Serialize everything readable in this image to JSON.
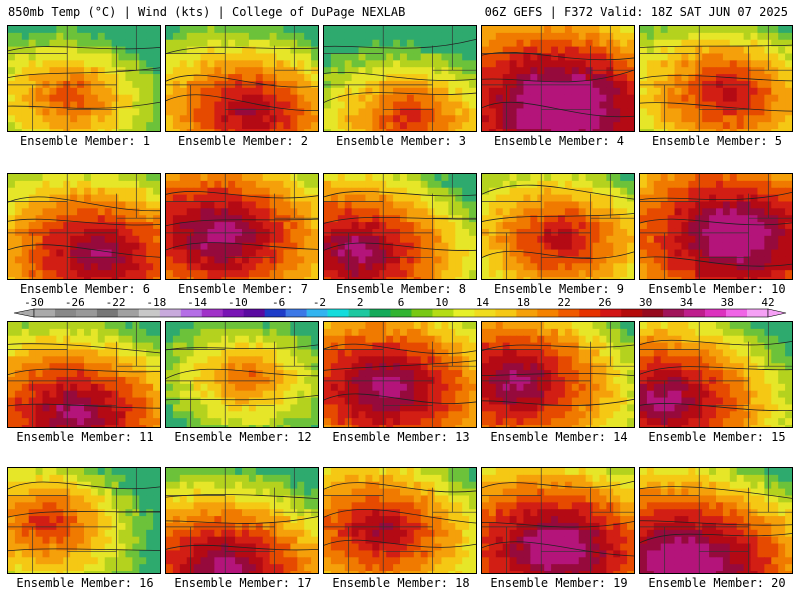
{
  "header": {
    "left": "850mb Temp (°C) | Wind (kts) | College of DuPage NEXLAB",
    "right": "06Z GEFS | F372 Valid: 18Z SAT JUN 07 2025"
  },
  "colorbar": {
    "labels": [
      "-30",
      "-26",
      "-22",
      "-18",
      "-14",
      "-10",
      "-6",
      "-2",
      "2",
      "6",
      "10",
      "14",
      "18",
      "22",
      "26",
      "30",
      "34",
      "38",
      "42"
    ],
    "colors": [
      "#aaaaaa",
      "#888888",
      "#999999",
      "#777777",
      "#a0a0a0",
      "#c8c8c8",
      "#c8aadc",
      "#b46ee6",
      "#a032c8",
      "#7814b4",
      "#5a0aa0",
      "#1e3cc8",
      "#3c78e6",
      "#32b4f0",
      "#14dcdc",
      "#1ec8a0",
      "#14aa5a",
      "#32b432",
      "#78c814",
      "#b4dc14",
      "#e6f028",
      "#f0dc1e",
      "#f5c814",
      "#f5a00a",
      "#f58200",
      "#f05a00",
      "#e63200",
      "#d21414",
      "#b40a0a",
      "#960a1e",
      "#a0145a",
      "#be1e8c",
      "#dc32be",
      "#f064e6",
      "#f5a0f5"
    ]
  },
  "members": [
    {
      "label": "Ensemble Member: 1",
      "heat": 0.35
    },
    {
      "label": "Ensemble Member: 2",
      "heat": 0.55
    },
    {
      "label": "Ensemble Member: 3",
      "heat": 0.4
    },
    {
      "label": "Ensemble Member: 4",
      "heat": 0.85
    },
    {
      "label": "Ensemble Member: 5",
      "heat": 0.5
    },
    {
      "label": "Ensemble Member: 6",
      "heat": 0.65
    },
    {
      "label": "Ensemble Member: 7",
      "heat": 0.7
    },
    {
      "label": "Ensemble Member: 8",
      "heat": 0.65
    },
    {
      "label": "Ensemble Member: 9",
      "heat": 0.5
    },
    {
      "label": "Ensemble Member: 10",
      "heat": 0.8
    },
    {
      "label": "Ensemble Member: 11",
      "heat": 0.65
    },
    {
      "label": "Ensemble Member: 12",
      "heat": 0.3
    },
    {
      "label": "Ensemble Member: 13",
      "heat": 0.7
    },
    {
      "label": "Ensemble Member: 14",
      "heat": 0.65
    },
    {
      "label": "Ensemble Member: 15",
      "heat": 0.65
    },
    {
      "label": "Ensemble Member: 16",
      "heat": 0.4
    },
    {
      "label": "Ensemble Member: 17",
      "heat": 0.65
    },
    {
      "label": "Ensemble Member: 18",
      "heat": 0.55
    },
    {
      "label": "Ensemble Member: 19",
      "heat": 0.75
    },
    {
      "label": "Ensemble Member: 20",
      "heat": 0.8
    }
  ]
}
